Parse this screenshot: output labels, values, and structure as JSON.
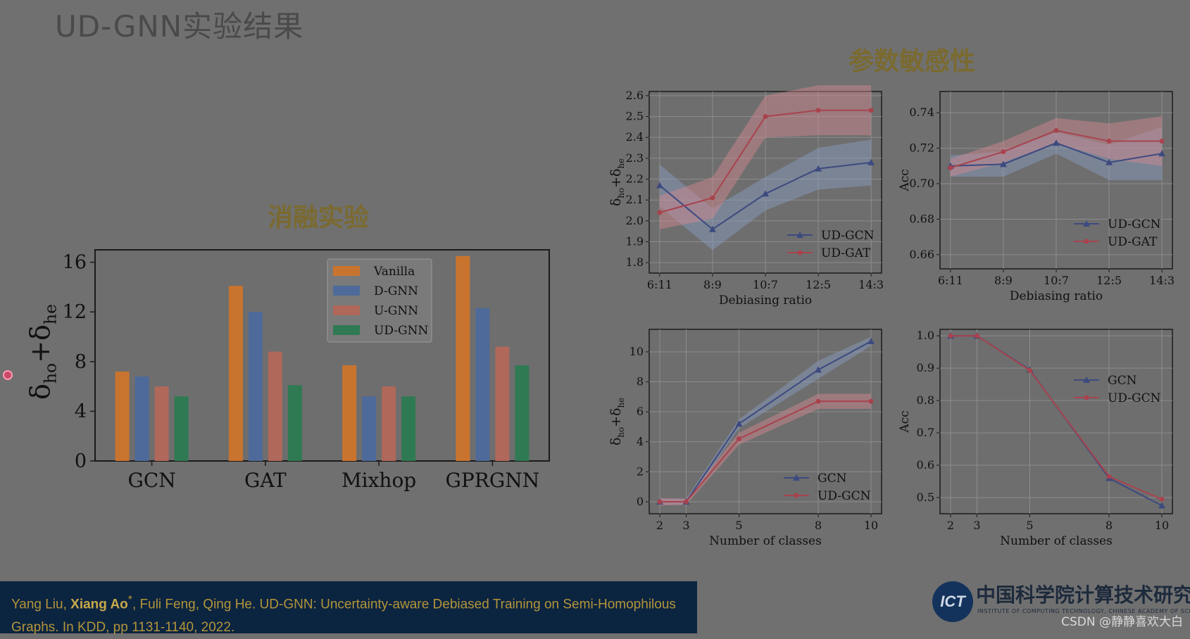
{
  "slide": {
    "title": "UD-GNN实验结果",
    "ablation_heading": "消融实验",
    "sensitivity_heading": "参数敏感性"
  },
  "citation": {
    "line1_pre": "Yang Liu, ",
    "line1_bold": "Xiang Ao",
    "line1_sup": "*",
    "line1_post": ", Fuli Feng, Qing He. UD-GNN: Uncertainty-aware Debiased Training on Semi-Homophilous",
    "line2": "Graphs. In KDD, pp 1131-1140, 2022."
  },
  "logo": {
    "mark": "ICT",
    "name": "中国科学院计算技术研究所",
    "subtitle": "INSTITUTE OF COMPUTING TECHNOLOGY, CHINESE ACADEMY OF SCIENCES"
  },
  "watermark": "CSDN @静静喜欢大白",
  "colors": {
    "vanilla": "#c9742e",
    "dgnn": "#4e6a9a",
    "ugnn": "#b0685a",
    "udgnn": "#2f7a52",
    "blue_line": "#3d4a7f",
    "red_line": "#a8434e",
    "blue_band": "#8aa0c6",
    "red_band": "#d78a90"
  },
  "chart_data": [
    {
      "id": "ablation",
      "type": "bar",
      "categories": [
        "GCN",
        "GAT",
        "Mixhop",
        "GPRGNN"
      ],
      "ylabel": "δho+δhe",
      "ylim": [
        0,
        17
      ],
      "yticks": [
        0,
        4,
        8,
        12,
        16
      ],
      "legend_position": "top-center",
      "series": [
        {
          "name": "Vanilla",
          "values": [
            7.2,
            14.1,
            7.7,
            16.5
          ]
        },
        {
          "name": "D-GNN",
          "values": [
            6.8,
            12.0,
            5.2,
            12.3
          ]
        },
        {
          "name": "U-GNN",
          "values": [
            6.0,
            8.8,
            6.0,
            9.2
          ]
        },
        {
          "name": "UD-GNN",
          "values": [
            5.2,
            6.1,
            5.2,
            7.7
          ]
        }
      ]
    },
    {
      "id": "ratio-delta",
      "type": "line",
      "x": [
        "6:11",
        "8:9",
        "10:7",
        "12:5",
        "14:3"
      ],
      "xlabel": "Debiasing ratio",
      "ylabel": "δho+δhe",
      "ylim": [
        1.75,
        2.62
      ],
      "yticks": [
        1.8,
        1.9,
        2.0,
        2.1,
        2.2,
        2.3,
        2.4,
        2.5,
        2.6
      ],
      "legend_position": "lower-right",
      "series": [
        {
          "name": "UD-GCN",
          "marker": "triangle",
          "values": [
            2.17,
            1.96,
            2.13,
            2.25,
            2.28
          ],
          "band": [
            0.1,
            0.1,
            0.08,
            0.1,
            0.11
          ]
        },
        {
          "name": "UD-GAT",
          "marker": "circle",
          "values": [
            2.04,
            2.11,
            2.5,
            2.53,
            2.53
          ],
          "band": [
            0.08,
            0.1,
            0.1,
            0.12,
            0.12
          ]
        }
      ]
    },
    {
      "id": "ratio-acc",
      "type": "line",
      "x": [
        "6:11",
        "8:9",
        "10:7",
        "12:5",
        "14:3"
      ],
      "xlabel": "Debiasing ratio",
      "ylabel": "Acc",
      "ylim": [
        0.652,
        0.752
      ],
      "yticks": [
        0.66,
        0.68,
        0.7,
        0.72,
        0.74
      ],
      "legend_position": "lower-right",
      "series": [
        {
          "name": "UD-GCN",
          "marker": "triangle",
          "values": [
            0.71,
            0.711,
            0.723,
            0.712,
            0.717
          ],
          "band": [
            0.006,
            0.007,
            0.006,
            0.01,
            0.015
          ]
        },
        {
          "name": "UD-GAT",
          "marker": "circle",
          "values": [
            0.709,
            0.718,
            0.73,
            0.724,
            0.724
          ],
          "band": [
            0.005,
            0.006,
            0.007,
            0.01,
            0.014
          ]
        }
      ]
    },
    {
      "id": "classes-delta",
      "type": "line",
      "x": [
        2,
        3,
        5,
        8,
        10
      ],
      "xlabel": "Number of classes",
      "ylabel": "δho+δhe",
      "xlim": [
        1.6,
        10.4
      ],
      "ylim": [
        -0.8,
        11.5
      ],
      "yticks": [
        0,
        2,
        4,
        6,
        8,
        10
      ],
      "legend_position": "lower-right",
      "series": [
        {
          "name": "GCN",
          "marker": "triangle",
          "values": [
            0.0,
            0.0,
            5.2,
            8.8,
            10.7
          ],
          "band": [
            0.2,
            0.2,
            0.3,
            0.6,
            0.3
          ]
        },
        {
          "name": "UD-GCN",
          "marker": "circle",
          "values": [
            0.0,
            0.0,
            4.2,
            6.7,
            6.7
          ],
          "band": [
            0.25,
            0.2,
            0.4,
            0.5,
            0.5
          ]
        }
      ]
    },
    {
      "id": "classes-acc",
      "type": "line",
      "x": [
        2,
        3,
        5,
        8,
        10
      ],
      "xlabel": "Number of classes",
      "ylabel": "Acc",
      "xlim": [
        1.6,
        10.4
      ],
      "ylim": [
        0.45,
        1.02
      ],
      "yticks": [
        0.5,
        0.6,
        0.7,
        0.8,
        0.9,
        1.0
      ],
      "legend_position": "upper-right",
      "series": [
        {
          "name": "GCN",
          "marker": "triangle",
          "values": [
            1.0,
            1.0,
            0.895,
            0.56,
            0.475
          ],
          "band": [
            0,
            0,
            0,
            0,
            0
          ]
        },
        {
          "name": "UD-GCN",
          "marker": "circle",
          "values": [
            1.0,
            1.0,
            0.893,
            0.565,
            0.495
          ],
          "band": [
            0,
            0,
            0,
            0,
            0
          ]
        }
      ]
    }
  ]
}
